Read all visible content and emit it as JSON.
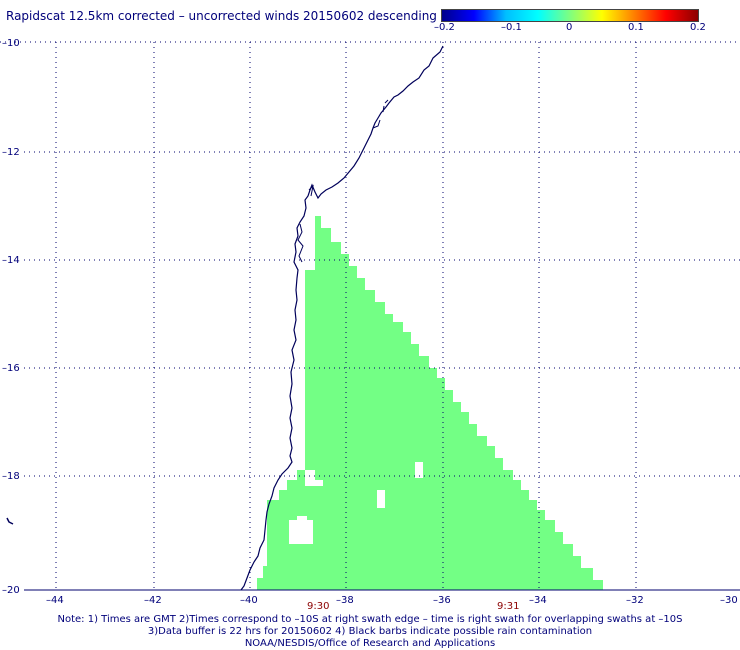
{
  "title": "Rapidscat 12.5km corrected – uncorrected winds 20150602 descending",
  "colorbar": {
    "labels": [
      "–0.2",
      "–0.1",
      "0",
      "0.1",
      "0.2"
    ],
    "colors": [
      "#00008b",
      "#0000ff",
      "#00bfff",
      "#00ffff",
      "#7fff7f",
      "#ffff00",
      "#ff8000",
      "#ff0000",
      "#8b0000"
    ]
  },
  "lat_labels": [
    "–10",
    "–12",
    "–14",
    "–16",
    "–18",
    "–20"
  ],
  "lon_labels": [
    "–44",
    "–42",
    "–40",
    "–38",
    "–36",
    "–34",
    "–32",
    "–30"
  ],
  "time_labels": [
    "9:30",
    "9:31"
  ],
  "swath_color": "#73ff85",
  "coast_color": "#00005a",
  "notes": [
    "Note: 1) Times are GMT 2)Times correspond to –10S at right swath edge – time is right swath for overlapping swaths at –10S",
    "3)Data buffer is 22 hrs for 20150602 4) Black barbs indicate possible rain contamination",
    "NOAA/NESDIS/Office of Research and Applications"
  ]
}
